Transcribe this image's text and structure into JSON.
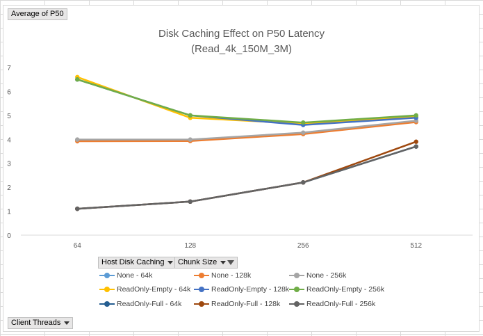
{
  "pivot": {
    "value_field": "Average of P50",
    "row_field": "Client Threads",
    "legend_fields": [
      "Host Disk Caching",
      "Chunk Size"
    ]
  },
  "chart_data": {
    "type": "line",
    "title": "Disk Caching Effect on P50 Latency",
    "subtitle": "(Read_4k_150M_3M)",
    "categories": [
      "64",
      "128",
      "256",
      "512"
    ],
    "ylim": [
      0,
      7
    ],
    "yticks": [
      "0",
      "1",
      "2",
      "3",
      "4",
      "5",
      "6",
      "7"
    ],
    "grid": false,
    "legend_position": "bottom",
    "series": [
      {
        "name": "None - 64k",
        "color": "#5b9bd5",
        "values": [
          3.97,
          3.97,
          4.25,
          4.75
        ]
      },
      {
        "name": "None - 128k",
        "color": "#ed7d31",
        "values": [
          3.92,
          3.93,
          4.22,
          4.72
        ]
      },
      {
        "name": "None - 256k",
        "color": "#a5a5a5",
        "values": [
          3.99,
          3.99,
          4.28,
          4.78
        ]
      },
      {
        "name": "ReadOnly-Empty - 64k",
        "color": "#ffc000",
        "values": [
          6.6,
          4.9,
          4.65,
          4.95
        ]
      },
      {
        "name": "ReadOnly-Empty - 128k",
        "color": "#4472c4",
        "values": [
          6.5,
          5.0,
          4.6,
          4.9
        ]
      },
      {
        "name": "ReadOnly-Empty - 256k",
        "color": "#70ad47",
        "values": [
          6.5,
          5.0,
          4.7,
          5.0
        ]
      },
      {
        "name": "ReadOnly-Full - 64k",
        "color": "#255e91",
        "values": [
          1.1,
          1.4,
          2.2,
          3.7
        ]
      },
      {
        "name": "ReadOnly-Full - 128k",
        "color": "#9e480e",
        "values": [
          1.1,
          1.4,
          2.2,
          3.9
        ]
      },
      {
        "name": "ReadOnly-Full - 256k",
        "color": "#636363",
        "values": [
          1.1,
          1.4,
          2.2,
          3.7
        ]
      }
    ]
  }
}
